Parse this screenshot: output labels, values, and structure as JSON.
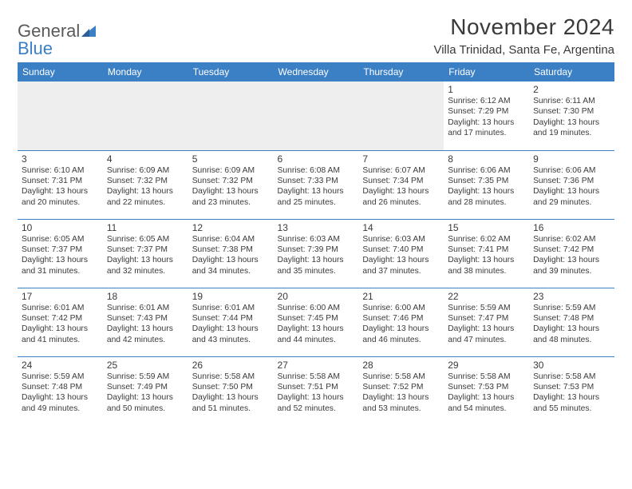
{
  "brand": {
    "part1": "General",
    "part2": "Blue"
  },
  "title": "November 2024",
  "location": "Villa Trinidad, Santa Fe, Argentina",
  "colors": {
    "accent": "#3b7fc4",
    "text": "#3a3a3a",
    "empty_bg": "#eeeeee",
    "background": "#ffffff"
  },
  "dow": [
    "Sunday",
    "Monday",
    "Tuesday",
    "Wednesday",
    "Thursday",
    "Friday",
    "Saturday"
  ],
  "weeks": [
    [
      {
        "empty": true
      },
      {
        "empty": true
      },
      {
        "empty": true
      },
      {
        "empty": true
      },
      {
        "empty": true
      },
      {
        "num": "1",
        "sunrise": "Sunrise: 6:12 AM",
        "sunset": "Sunset: 7:29 PM",
        "day1": "Daylight: 13 hours",
        "day2": "and 17 minutes."
      },
      {
        "num": "2",
        "sunrise": "Sunrise: 6:11 AM",
        "sunset": "Sunset: 7:30 PM",
        "day1": "Daylight: 13 hours",
        "day2": "and 19 minutes."
      }
    ],
    [
      {
        "num": "3",
        "sunrise": "Sunrise: 6:10 AM",
        "sunset": "Sunset: 7:31 PM",
        "day1": "Daylight: 13 hours",
        "day2": "and 20 minutes."
      },
      {
        "num": "4",
        "sunrise": "Sunrise: 6:09 AM",
        "sunset": "Sunset: 7:32 PM",
        "day1": "Daylight: 13 hours",
        "day2": "and 22 minutes."
      },
      {
        "num": "5",
        "sunrise": "Sunrise: 6:09 AM",
        "sunset": "Sunset: 7:32 PM",
        "day1": "Daylight: 13 hours",
        "day2": "and 23 minutes."
      },
      {
        "num": "6",
        "sunrise": "Sunrise: 6:08 AM",
        "sunset": "Sunset: 7:33 PM",
        "day1": "Daylight: 13 hours",
        "day2": "and 25 minutes."
      },
      {
        "num": "7",
        "sunrise": "Sunrise: 6:07 AM",
        "sunset": "Sunset: 7:34 PM",
        "day1": "Daylight: 13 hours",
        "day2": "and 26 minutes."
      },
      {
        "num": "8",
        "sunrise": "Sunrise: 6:06 AM",
        "sunset": "Sunset: 7:35 PM",
        "day1": "Daylight: 13 hours",
        "day2": "and 28 minutes."
      },
      {
        "num": "9",
        "sunrise": "Sunrise: 6:06 AM",
        "sunset": "Sunset: 7:36 PM",
        "day1": "Daylight: 13 hours",
        "day2": "and 29 minutes."
      }
    ],
    [
      {
        "num": "10",
        "sunrise": "Sunrise: 6:05 AM",
        "sunset": "Sunset: 7:37 PM",
        "day1": "Daylight: 13 hours",
        "day2": "and 31 minutes."
      },
      {
        "num": "11",
        "sunrise": "Sunrise: 6:05 AM",
        "sunset": "Sunset: 7:37 PM",
        "day1": "Daylight: 13 hours",
        "day2": "and 32 minutes."
      },
      {
        "num": "12",
        "sunrise": "Sunrise: 6:04 AM",
        "sunset": "Sunset: 7:38 PM",
        "day1": "Daylight: 13 hours",
        "day2": "and 34 minutes."
      },
      {
        "num": "13",
        "sunrise": "Sunrise: 6:03 AM",
        "sunset": "Sunset: 7:39 PM",
        "day1": "Daylight: 13 hours",
        "day2": "and 35 minutes."
      },
      {
        "num": "14",
        "sunrise": "Sunrise: 6:03 AM",
        "sunset": "Sunset: 7:40 PM",
        "day1": "Daylight: 13 hours",
        "day2": "and 37 minutes."
      },
      {
        "num": "15",
        "sunrise": "Sunrise: 6:02 AM",
        "sunset": "Sunset: 7:41 PM",
        "day1": "Daylight: 13 hours",
        "day2": "and 38 minutes."
      },
      {
        "num": "16",
        "sunrise": "Sunrise: 6:02 AM",
        "sunset": "Sunset: 7:42 PM",
        "day1": "Daylight: 13 hours",
        "day2": "and 39 minutes."
      }
    ],
    [
      {
        "num": "17",
        "sunrise": "Sunrise: 6:01 AM",
        "sunset": "Sunset: 7:42 PM",
        "day1": "Daylight: 13 hours",
        "day2": "and 41 minutes."
      },
      {
        "num": "18",
        "sunrise": "Sunrise: 6:01 AM",
        "sunset": "Sunset: 7:43 PM",
        "day1": "Daylight: 13 hours",
        "day2": "and 42 minutes."
      },
      {
        "num": "19",
        "sunrise": "Sunrise: 6:01 AM",
        "sunset": "Sunset: 7:44 PM",
        "day1": "Daylight: 13 hours",
        "day2": "and 43 minutes."
      },
      {
        "num": "20",
        "sunrise": "Sunrise: 6:00 AM",
        "sunset": "Sunset: 7:45 PM",
        "day1": "Daylight: 13 hours",
        "day2": "and 44 minutes."
      },
      {
        "num": "21",
        "sunrise": "Sunrise: 6:00 AM",
        "sunset": "Sunset: 7:46 PM",
        "day1": "Daylight: 13 hours",
        "day2": "and 46 minutes."
      },
      {
        "num": "22",
        "sunrise": "Sunrise: 5:59 AM",
        "sunset": "Sunset: 7:47 PM",
        "day1": "Daylight: 13 hours",
        "day2": "and 47 minutes."
      },
      {
        "num": "23",
        "sunrise": "Sunrise: 5:59 AM",
        "sunset": "Sunset: 7:48 PM",
        "day1": "Daylight: 13 hours",
        "day2": "and 48 minutes."
      }
    ],
    [
      {
        "num": "24",
        "sunrise": "Sunrise: 5:59 AM",
        "sunset": "Sunset: 7:48 PM",
        "day1": "Daylight: 13 hours",
        "day2": "and 49 minutes."
      },
      {
        "num": "25",
        "sunrise": "Sunrise: 5:59 AM",
        "sunset": "Sunset: 7:49 PM",
        "day1": "Daylight: 13 hours",
        "day2": "and 50 minutes."
      },
      {
        "num": "26",
        "sunrise": "Sunrise: 5:58 AM",
        "sunset": "Sunset: 7:50 PM",
        "day1": "Daylight: 13 hours",
        "day2": "and 51 minutes."
      },
      {
        "num": "27",
        "sunrise": "Sunrise: 5:58 AM",
        "sunset": "Sunset: 7:51 PM",
        "day1": "Daylight: 13 hours",
        "day2": "and 52 minutes."
      },
      {
        "num": "28",
        "sunrise": "Sunrise: 5:58 AM",
        "sunset": "Sunset: 7:52 PM",
        "day1": "Daylight: 13 hours",
        "day2": "and 53 minutes."
      },
      {
        "num": "29",
        "sunrise": "Sunrise: 5:58 AM",
        "sunset": "Sunset: 7:53 PM",
        "day1": "Daylight: 13 hours",
        "day2": "and 54 minutes."
      },
      {
        "num": "30",
        "sunrise": "Sunrise: 5:58 AM",
        "sunset": "Sunset: 7:53 PM",
        "day1": "Daylight: 13 hours",
        "day2": "and 55 minutes."
      }
    ]
  ]
}
